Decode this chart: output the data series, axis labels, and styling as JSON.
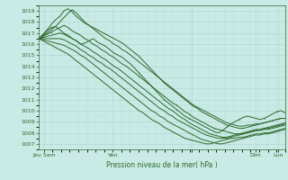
{
  "title": "Pression niveau de la mer( hPa )",
  "ylabel_values": [
    1007,
    1008,
    1009,
    1010,
    1011,
    1012,
    1013,
    1014,
    1015,
    1016,
    1017,
    1018,
    1019
  ],
  "ylim": [
    1006.5,
    1019.5
  ],
  "xlim": [
    0,
    100
  ],
  "bg_color": "#caeae5",
  "line_color": "#2d6a2d",
  "grid_major_color": "#aad4ce",
  "grid_minor_color": "#bde0da",
  "series": [
    [
      1016.5,
      1016.8,
      1017.2,
      1017.5,
      1017.6,
      1017.3,
      1017.0,
      1016.8,
      1016.5,
      1016.3,
      1016.0,
      1016.1,
      1016.3,
      1016.5,
      1016.2,
      1016.0,
      1015.8,
      1015.5,
      1015.2,
      1015.0,
      1014.8,
      1014.5,
      1014.2,
      1013.8,
      1013.4,
      1013.0,
      1012.6,
      1012.2,
      1011.8,
      1011.4,
      1011.0,
      1010.7,
      1010.4,
      1010.1,
      1009.8,
      1009.5,
      1009.3,
      1009.1,
      1008.9,
      1008.7,
      1008.5,
      1008.3,
      1008.1,
      1008.0,
      1008.2,
      1008.5,
      1008.8,
      1009.0,
      1009.2,
      1009.4,
      1009.5,
      1009.4,
      1009.3,
      1009.2,
      1009.3,
      1009.5,
      1009.7,
      1009.9,
      1010.0,
      1009.8
    ],
    [
      1016.5,
      1016.9,
      1017.3,
      1017.8,
      1018.2,
      1018.5,
      1019.0,
      1019.2,
      1018.9,
      1018.5,
      1018.2,
      1017.9,
      1017.7,
      1017.5,
      1017.3,
      1017.1,
      1016.9,
      1016.7,
      1016.5,
      1016.3,
      1016.1,
      1015.8,
      1015.5,
      1015.2,
      1014.9,
      1014.5,
      1014.1,
      1013.7,
      1013.3,
      1012.9,
      1012.5,
      1012.2,
      1011.9,
      1011.6,
      1011.3,
      1011.0,
      1010.7,
      1010.4,
      1010.2,
      1009.9,
      1009.7,
      1009.5,
      1009.3,
      1009.1,
      1008.9,
      1008.7,
      1008.6,
      1008.5,
      1008.4,
      1008.4,
      1008.5,
      1008.6,
      1008.7,
      1008.8,
      1008.9,
      1009.0,
      1009.1,
      1009.2,
      1009.3,
      1009.3
    ],
    [
      1016.5,
      1016.8,
      1017.0,
      1017.3,
      1017.6,
      1018.0,
      1018.4,
      1018.8,
      1019.1,
      1018.8,
      1018.4,
      1018.0,
      1017.7,
      1017.4,
      1017.1,
      1016.8,
      1016.5,
      1016.3,
      1016.0,
      1015.8,
      1015.5,
      1015.3,
      1015.0,
      1014.7,
      1014.4,
      1014.1,
      1013.8,
      1013.5,
      1013.2,
      1012.9,
      1012.6,
      1012.3,
      1012.0,
      1011.7,
      1011.4,
      1011.1,
      1010.8,
      1010.5,
      1010.3,
      1010.1,
      1009.9,
      1009.7,
      1009.5,
      1009.3,
      1009.1,
      1008.9,
      1008.8,
      1008.7,
      1008.6,
      1008.6,
      1008.7,
      1008.7,
      1008.8,
      1008.8,
      1008.9,
      1009.0,
      1009.1,
      1009.2,
      1009.3,
      1009.3
    ],
    [
      1016.5,
      1016.7,
      1016.9,
      1017.1,
      1017.3,
      1017.5,
      1017.7,
      1017.5,
      1017.2,
      1017.0,
      1016.8,
      1016.5,
      1016.3,
      1016.0,
      1015.8,
      1015.5,
      1015.3,
      1015.0,
      1014.8,
      1014.5,
      1014.2,
      1014.0,
      1013.7,
      1013.4,
      1013.1,
      1012.8,
      1012.5,
      1012.2,
      1011.9,
      1011.6,
      1011.3,
      1011.0,
      1010.7,
      1010.5,
      1010.2,
      1009.9,
      1009.7,
      1009.4,
      1009.2,
      1009.0,
      1008.8,
      1008.6,
      1008.4,
      1008.3,
      1008.2,
      1008.1,
      1008.0,
      1007.9,
      1007.9,
      1007.9,
      1008.0,
      1008.1,
      1008.2,
      1008.3,
      1008.4,
      1008.5,
      1008.6,
      1008.7,
      1008.8,
      1008.9
    ],
    [
      1016.5,
      1016.6,
      1016.7,
      1016.8,
      1016.9,
      1017.0,
      1016.9,
      1016.7,
      1016.5,
      1016.3,
      1016.0,
      1015.8,
      1015.6,
      1015.3,
      1015.1,
      1014.8,
      1014.6,
      1014.3,
      1014.0,
      1013.8,
      1013.5,
      1013.2,
      1012.9,
      1012.6,
      1012.3,
      1012.0,
      1011.7,
      1011.4,
      1011.1,
      1010.8,
      1010.5,
      1010.2,
      1010.0,
      1009.7,
      1009.4,
      1009.2,
      1008.9,
      1008.7,
      1008.5,
      1008.3,
      1008.1,
      1007.9,
      1007.8,
      1007.7,
      1007.6,
      1007.6,
      1007.7,
      1007.8,
      1007.9,
      1008.0,
      1008.1,
      1008.2,
      1008.3,
      1008.3,
      1008.4,
      1008.4,
      1008.5,
      1008.6,
      1008.7,
      1008.8
    ],
    [
      1016.5,
      1016.5,
      1016.5,
      1016.5,
      1016.5,
      1016.5,
      1016.4,
      1016.2,
      1016.0,
      1015.8,
      1015.5,
      1015.3,
      1015.0,
      1014.8,
      1014.5,
      1014.3,
      1014.0,
      1013.8,
      1013.5,
      1013.2,
      1012.9,
      1012.6,
      1012.3,
      1012.0,
      1011.7,
      1011.4,
      1011.1,
      1010.8,
      1010.5,
      1010.2,
      1010.0,
      1009.7,
      1009.5,
      1009.2,
      1009.0,
      1008.8,
      1008.6,
      1008.4,
      1008.2,
      1008.0,
      1007.8,
      1007.7,
      1007.6,
      1007.5,
      1007.5,
      1007.5,
      1007.6,
      1007.7,
      1007.8,
      1007.9,
      1008.0,
      1008.1,
      1008.2,
      1008.2,
      1008.3,
      1008.3,
      1008.4,
      1008.5,
      1008.6,
      1008.7
    ],
    [
      1016.5,
      1016.4,
      1016.3,
      1016.2,
      1016.1,
      1016.0,
      1015.9,
      1015.7,
      1015.5,
      1015.3,
      1015.0,
      1014.8,
      1014.5,
      1014.2,
      1013.9,
      1013.6,
      1013.3,
      1013.0,
      1012.7,
      1012.4,
      1012.1,
      1011.8,
      1011.5,
      1011.2,
      1010.9,
      1010.6,
      1010.3,
      1010.0,
      1009.8,
      1009.5,
      1009.3,
      1009.0,
      1008.8,
      1008.6,
      1008.4,
      1008.2,
      1008.0,
      1007.8,
      1007.6,
      1007.4,
      1007.3,
      1007.2,
      1007.1,
      1007.0,
      1007.0,
      1007.1,
      1007.2,
      1007.3,
      1007.4,
      1007.5,
      1007.6,
      1007.7,
      1007.8,
      1007.8,
      1007.9,
      1007.9,
      1008.0,
      1008.1,
      1008.2,
      1008.3
    ],
    [
      1016.5,
      1016.3,
      1016.1,
      1015.9,
      1015.7,
      1015.5,
      1015.3,
      1015.1,
      1014.8,
      1014.5,
      1014.2,
      1013.9,
      1013.6,
      1013.3,
      1013.0,
      1012.7,
      1012.4,
      1012.1,
      1011.8,
      1011.5,
      1011.2,
      1010.9,
      1010.6,
      1010.3,
      1010.0,
      1009.8,
      1009.5,
      1009.2,
      1009.0,
      1008.8,
      1008.5,
      1008.3,
      1008.1,
      1007.9,
      1007.7,
      1007.5,
      1007.4,
      1007.3,
      1007.2,
      1007.1,
      1007.0,
      1007.0,
      1007.1,
      1007.2,
      1007.3,
      1007.4,
      1007.5,
      1007.5,
      1007.6,
      1007.6,
      1007.7,
      1007.8,
      1007.9,
      1007.9,
      1008.0,
      1008.0,
      1008.1,
      1008.2,
      1008.3,
      1008.4
    ]
  ]
}
